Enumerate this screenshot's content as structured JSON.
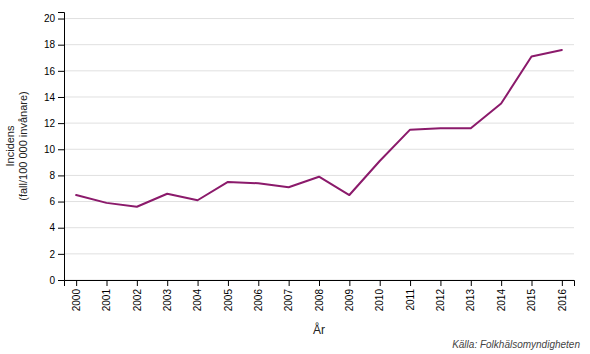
{
  "chart_data": {
    "type": "line",
    "x": [
      2000,
      2001,
      2002,
      2003,
      2004,
      2005,
      2006,
      2007,
      2008,
      2009,
      2010,
      2011,
      2012,
      2013,
      2014,
      2015,
      2016
    ],
    "values": [
      6.5,
      5.9,
      5.6,
      6.6,
      6.1,
      7.5,
      7.4,
      7.1,
      7.9,
      6.5,
      9.1,
      11.5,
      11.6,
      11.6,
      13.5,
      17.1,
      17.6
    ],
    "color": "#8B1A6B",
    "xlabel": "År",
    "ylabel": [
      "Incidens",
      "(fall/100 000 invånare)"
    ],
    "annotations": [
      "Källa: Folkhälsomyndigheten"
    ],
    "xlim": [
      1999.6,
      2016.4
    ],
    "xticks": [
      2000,
      2001,
      2002,
      2003,
      2004,
      2005,
      2006,
      2007,
      2008,
      2009,
      2010,
      2011,
      2012,
      2013,
      2014,
      2015,
      2016
    ],
    "ylim": [
      0,
      20.5
    ],
    "yticks": [
      0,
      2,
      4,
      6,
      8,
      10,
      12,
      14,
      16,
      18,
      20
    ],
    "grid": true
  }
}
